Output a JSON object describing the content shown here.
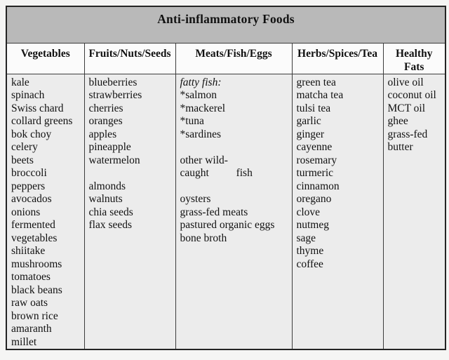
{
  "table": {
    "title": "Anti-inflammatory Foods",
    "colors": {
      "title_bar": "#b9b9b9",
      "header_row": "#fbfbfb",
      "body_cells": "#ececec",
      "page_background": "#f5f5f4",
      "border": "#3c3c3c"
    },
    "columns": [
      {
        "header": "Vegetables",
        "items": [
          "kale",
          "spinach",
          "Swiss chard",
          "collard greens",
          "bok choy",
          "celery",
          "beets",
          "broccoli",
          "peppers",
          "avocados",
          "onions",
          "fermented vegetables",
          "shiitake mushrooms",
          "tomatoes",
          "black beans",
          "raw oats",
          "brown rice",
          "amaranth",
          "millet"
        ],
        "italic_items": []
      },
      {
        "header": "Fruits/Nuts/Seeds",
        "items": [
          "blueberries",
          "strawberries",
          "cherries",
          "oranges",
          "apples",
          "pineapple",
          "watermelon",
          "",
          "almonds",
          "walnuts",
          "chia seeds",
          "flax seeds"
        ],
        "italic_items": []
      },
      {
        "header": "Meats/Fish/Eggs",
        "items": [
          "fatty fish:",
          "*salmon",
          "*mackerel",
          "*tuna",
          "*sardines",
          "",
          "other wild-",
          "caught          fish",
          "",
          "oysters",
          "grass-fed meats",
          "pastured organic eggs",
          "bone broth"
        ],
        "italic_items": [
          0
        ]
      },
      {
        "header": "Herbs/Spices/Tea",
        "items": [
          "green tea",
          "matcha tea",
          "tulsi tea",
          "garlic",
          "ginger",
          "cayenne",
          "rosemary",
          "turmeric",
          "cinnamon",
          "oregano",
          "clove",
          "nutmeg",
          "sage",
          "thyme",
          "coffee"
        ],
        "italic_items": []
      },
      {
        "header": "Healthy\nFats",
        "items": [
          "olive oil",
          "coconut oil",
          "MCT oil",
          "ghee",
          "grass-fed butter"
        ],
        "italic_items": []
      }
    ]
  }
}
